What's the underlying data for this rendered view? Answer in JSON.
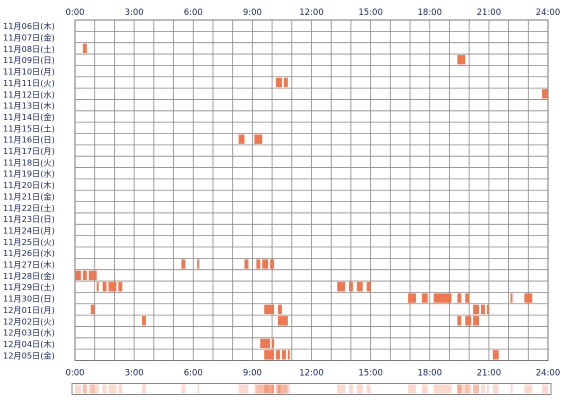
{
  "chart_data": {
    "type": "heatmap",
    "x_tick_labels": [
      "0:00",
      "3:00",
      "6:00",
      "9:00",
      "12:00",
      "15:00",
      "18:00",
      "21:00",
      "24:00"
    ],
    "x_range_hours": [
      0,
      24
    ],
    "y_labels": [
      "11月06日(木)",
      "11月07日(金)",
      "11月08日(土)",
      "11月09日(日)",
      "11月10日(月)",
      "11月11日(火)",
      "11月12日(水)",
      "11月13日(木)",
      "11月14日(金)",
      "11月15日(土)",
      "11月16日(日)",
      "11月17日(月)",
      "11月18日(火)",
      "11月19日(水)",
      "11月20日(木)",
      "11月21日(金)",
      "11月22日(土)",
      "11月23日(日)",
      "11月24日(月)",
      "11月25日(火)",
      "11月26日(水)",
      "11月27日(木)",
      "11月28日(金)",
      "11月29日(土)",
      "11月30日(日)",
      "12月01日(月)",
      "12月02日(火)",
      "12月03日(水)",
      "12月04日(木)",
      "12月05日(金)"
    ],
    "grid": true,
    "bar_color": "#f07850",
    "summary_strip": true,
    "activity_intervals_hours": [
      [],
      [],
      [
        [
          0.4,
          0.6
        ]
      ],
      [
        [
          19.4,
          19.8
        ]
      ],
      [],
      [
        [
          10.2,
          10.5
        ],
        [
          10.6,
          10.8
        ]
      ],
      [
        [
          23.7,
          24.0
        ]
      ],
      [],
      [],
      [],
      [
        [
          8.3,
          8.6
        ],
        [
          9.1,
          9.5
        ]
      ],
      [],
      [],
      [],
      [],
      [],
      [],
      [],
      [],
      [],
      [],
      [
        [
          5.4,
          5.6
        ],
        [
          6.2,
          6.3
        ],
        [
          8.6,
          8.8
        ],
        [
          9.2,
          9.4
        ],
        [
          9.5,
          9.8
        ],
        [
          9.9,
          10.1
        ]
      ],
      [
        [
          0.0,
          0.3
        ],
        [
          0.4,
          0.6
        ],
        [
          0.7,
          1.1
        ]
      ],
      [
        [
          1.1,
          1.2
        ],
        [
          1.4,
          1.6
        ],
        [
          1.7,
          2.1
        ],
        [
          2.2,
          2.4
        ],
        [
          13.3,
          13.7
        ],
        [
          13.9,
          14.1
        ],
        [
          14.3,
          14.6
        ],
        [
          14.8,
          15.0
        ]
      ],
      [
        [
          16.9,
          17.3
        ],
        [
          17.6,
          17.9
        ],
        [
          18.2,
          19.1
        ],
        [
          19.4,
          19.6
        ],
        [
          19.8,
          20.0
        ],
        [
          22.1,
          22.2
        ],
        [
          22.8,
          23.2
        ]
      ],
      [
        [
          0.8,
          1.0
        ],
        [
          9.6,
          10.1
        ],
        [
          10.3,
          10.5
        ],
        [
          20.2,
          20.5
        ],
        [
          20.6,
          20.8
        ],
        [
          20.9,
          21.0
        ]
      ],
      [
        [
          3.4,
          3.6
        ],
        [
          10.3,
          10.8
        ],
        [
          19.4,
          19.6
        ],
        [
          19.8,
          20.1
        ],
        [
          20.2,
          20.5
        ]
      ],
      [],
      [
        [
          9.4,
          9.9
        ],
        [
          10.0,
          10.1
        ]
      ],
      [
        [
          9.6,
          10.1
        ],
        [
          10.2,
          10.4
        ],
        [
          10.5,
          10.7
        ],
        [
          10.8,
          10.9
        ],
        [
          21.2,
          21.5
        ]
      ]
    ]
  }
}
